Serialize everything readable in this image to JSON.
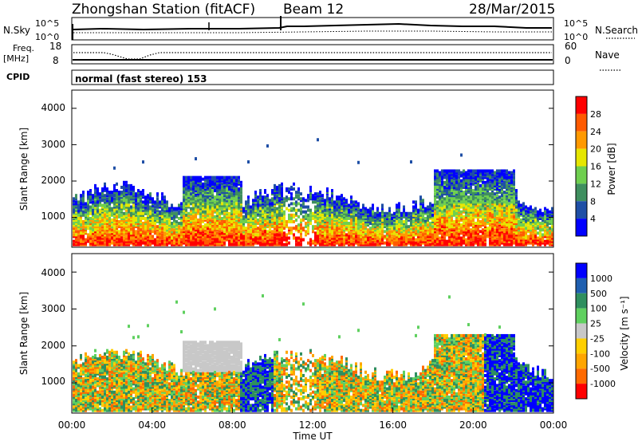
{
  "header": {
    "station": "Zhongshan Station (fitACF)",
    "beam": "Beam 12",
    "date": "28/Mar/2015"
  },
  "top_panels": {
    "nsky_label": "N.Sky",
    "nsky_ticks": [
      "10^5",
      "10^0"
    ],
    "nsearch_label": "N.Search",
    "freq_label_1": "Freq.",
    "freq_label_2": "[MHz]",
    "freq_ticks": [
      "18",
      "8"
    ],
    "nave_label": "Nave",
    "nave_ticks": [
      "60",
      "0"
    ],
    "cpid_label": "CPID",
    "cpid_value": "normal (fast stereo) 153"
  },
  "colors": {
    "power_scale": [
      "#0000ff",
      "#1f4fa6",
      "#3f8f5f",
      "#6fcf4f",
      "#e6e600",
      "#ff9900",
      "#ff5a00",
      "#ff0000"
    ],
    "velocity_scale": [
      "#ff0000",
      "#ff6a00",
      "#ffa500",
      "#ffcf00",
      "#c8c8c8",
      "#5fd05f",
      "#2f8f5f",
      "#1f5fb0",
      "#0000ff"
    ]
  },
  "chart_data": {
    "type": "heatmap",
    "xlabel": "Time UT",
    "x_ticks": [
      "00:00",
      "04:00",
      "08:00",
      "12:00",
      "16:00",
      "20:00",
      "00:00"
    ],
    "x_range_hours": [
      0,
      24
    ],
    "y_range_km": [
      180,
      4500
    ],
    "panels": [
      {
        "name": "power",
        "ylabel": "Slant Range [km]",
        "y_ticks": [
          "1000",
          "2000",
          "3000",
          "4000"
        ],
        "colorbar_label": "Power [dB]",
        "colorbar_ticks": [
          "4",
          "8",
          "12",
          "16",
          "20",
          "24",
          "28"
        ],
        "colorbar_range": [
          0,
          32
        ]
      },
      {
        "name": "velocity",
        "ylabel": "Slant Range [km]",
        "y_ticks": [
          "1000",
          "2000",
          "3000",
          "4000"
        ],
        "colorbar_label": "Velocity [m s⁻¹]",
        "colorbar_ticks": [
          "1000",
          "500",
          "100",
          "25",
          "-25",
          "-100",
          "-500",
          "-1000"
        ]
      }
    ]
  }
}
